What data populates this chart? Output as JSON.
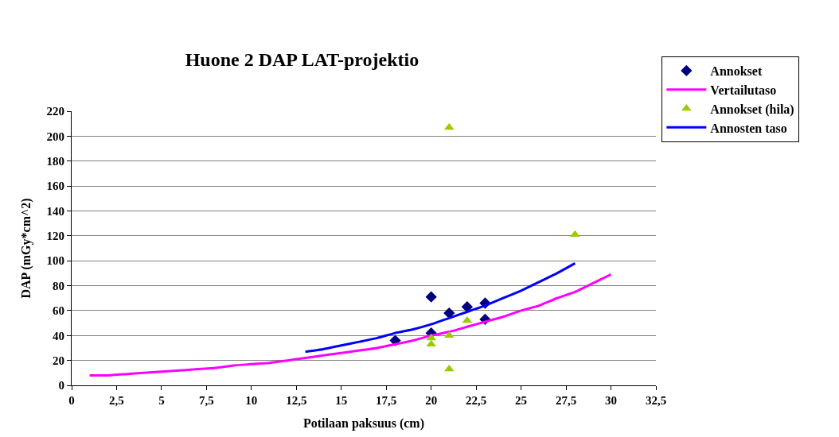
{
  "chart_data": {
    "type": "scatter",
    "title": "Huone 2 DAP LAT-projektio",
    "xlabel": "Potilaan paksuus (cm)",
    "ylabel": "DAP (mGy*cm^2)",
    "xlim": [
      0,
      32.5
    ],
    "xticks": [
      0,
      {
        "value": 2.5,
        "label": "2,5"
      },
      5,
      {
        "value": 7.5,
        "label": "7,5"
      },
      10,
      {
        "value": 12.5,
        "label": "12,5"
      },
      15,
      {
        "value": 17.5,
        "label": "17,5"
      },
      20,
      {
        "value": 22.5,
        "label": "22,5"
      },
      25,
      {
        "value": 27.5,
        "label": "27,5"
      },
      30,
      {
        "value": 32.5,
        "label": "32,5"
      }
    ],
    "ylim": [
      0,
      220
    ],
    "yticks": [
      0,
      20,
      40,
      60,
      80,
      100,
      120,
      140,
      160,
      180,
      200,
      220
    ],
    "grid": "y",
    "legend": "top right",
    "series": [
      {
        "name": "Annokset",
        "marker": "diamond",
        "color": "#000080",
        "x": [
          20,
          21,
          22,
          23,
          23,
          20,
          18
        ],
        "values": [
          71,
          58,
          63,
          66,
          53,
          42,
          36
        ]
      },
      {
        "name": "Vertailutaso",
        "type": "line",
        "marker": "none",
        "color": "#ff00ff",
        "x": [
          1,
          2,
          3,
          4,
          5,
          6,
          7,
          8,
          9,
          10,
          11,
          12,
          13,
          14,
          15,
          16,
          17,
          18,
          19,
          20,
          21,
          22,
          23,
          24,
          25,
          26,
          27,
          28,
          29,
          30
        ],
        "values": [
          8,
          8,
          9,
          10,
          11,
          12,
          13,
          14,
          16,
          17,
          18,
          20,
          22,
          24,
          26,
          28,
          30,
          33,
          36,
          40,
          43,
          47,
          51,
          55,
          60,
          64,
          70,
          75,
          82,
          89
        ]
      },
      {
        "name": "Annokset (hila)",
        "marker": "triangle",
        "color": "#99cc00",
        "x": [
          21,
          28,
          22,
          21,
          20,
          20,
          21
        ],
        "values": [
          207,
          121,
          52,
          40,
          38,
          33,
          13
        ]
      },
      {
        "name": "Annosten taso",
        "type": "line",
        "marker": "none",
        "color": "#0000ff",
        "x": [
          13,
          14,
          15,
          16,
          17,
          18,
          19,
          20,
          21,
          22,
          23,
          24,
          25,
          26,
          27,
          28
        ],
        "values": [
          27,
          29,
          32,
          35,
          38,
          42,
          45,
          49,
          54,
          59,
          64,
          70,
          76,
          83,
          90,
          98
        ]
      }
    ]
  }
}
